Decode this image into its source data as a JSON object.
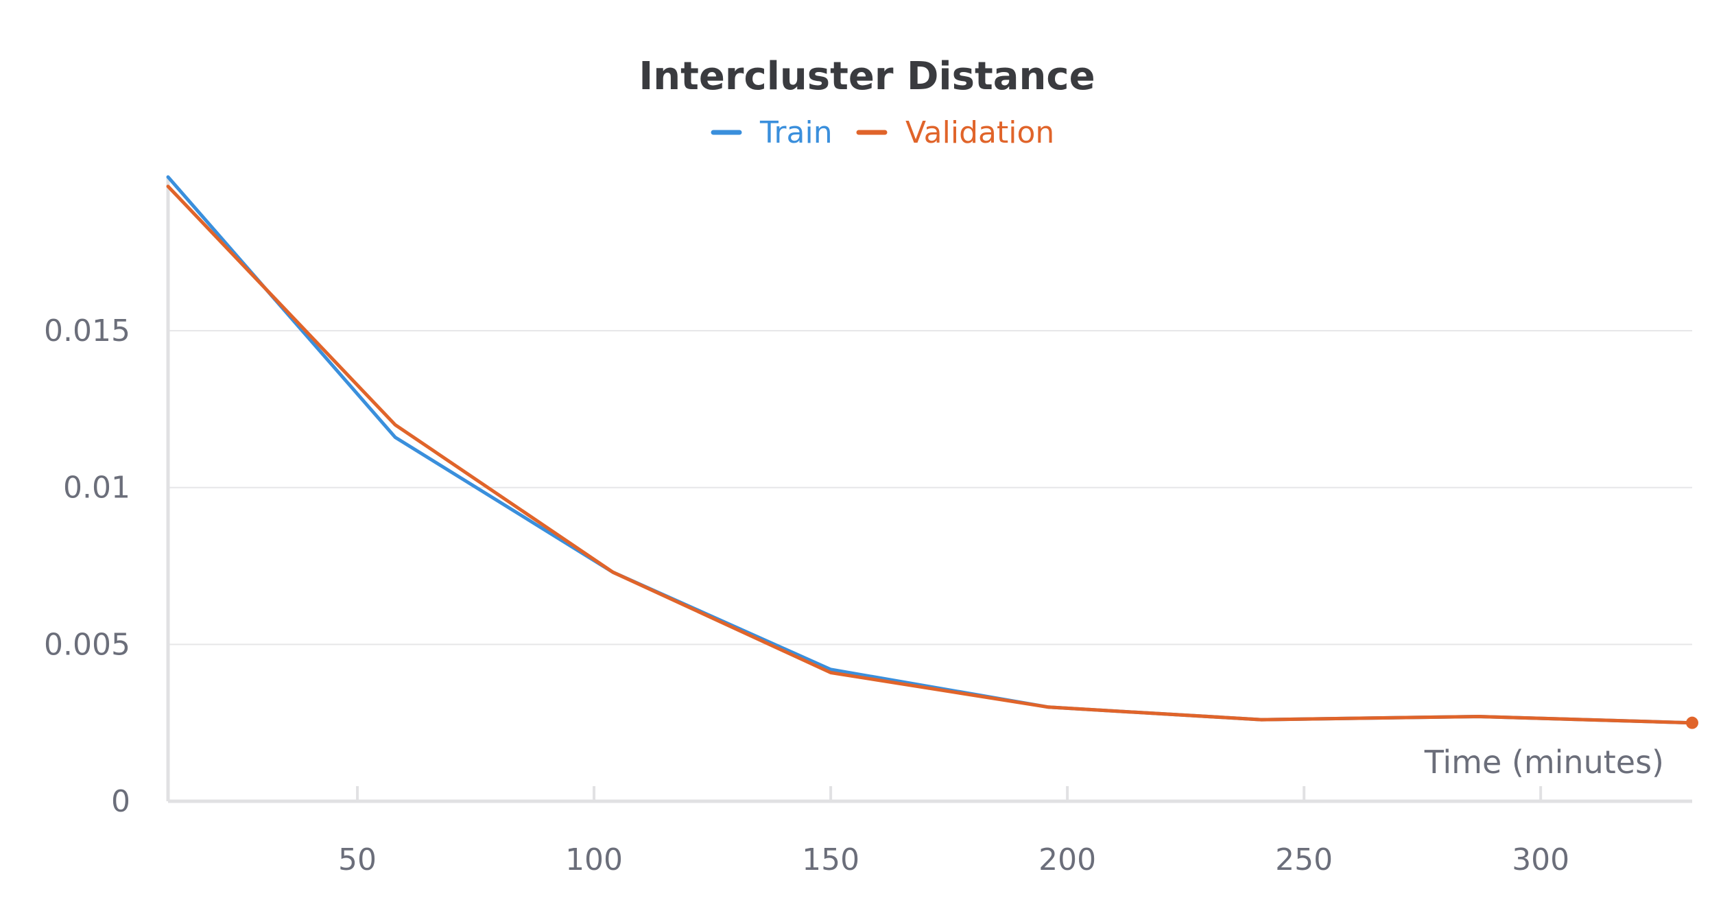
{
  "chart_data": {
    "type": "line",
    "title": "Intercluster Distance",
    "xlabel": "Time (minutes)",
    "ylabel": "",
    "xlim": [
      10,
      332
    ],
    "ylim": [
      0,
      0.0199
    ],
    "x_ticks": [
      50,
      100,
      150,
      200,
      250,
      300
    ],
    "x_tick_labels": [
      "50",
      "100",
      "150",
      "200",
      "250",
      "300"
    ],
    "y_ticks": [
      0,
      0.005,
      0.01,
      0.015
    ],
    "y_tick_labels": [
      "0",
      "0.005",
      "0.01",
      "0.015"
    ],
    "grid": "horizontal",
    "legend_placement": "top-center",
    "series": [
      {
        "name": "Train",
        "color": "#3a8fdc",
        "x": [
          10,
          58,
          104,
          150,
          196,
          241,
          287,
          332
        ],
        "y": [
          0.0199,
          0.0116,
          0.0073,
          0.0042,
          0.003,
          0.0026,
          0.0027,
          0.0025
        ]
      },
      {
        "name": "Validation",
        "color": "#e0642a",
        "x": [
          10,
          58,
          104,
          150,
          196,
          241,
          287,
          332
        ],
        "y": [
          0.0196,
          0.012,
          0.0073,
          0.0041,
          0.003,
          0.0026,
          0.0027,
          0.0025
        ]
      }
    ]
  }
}
